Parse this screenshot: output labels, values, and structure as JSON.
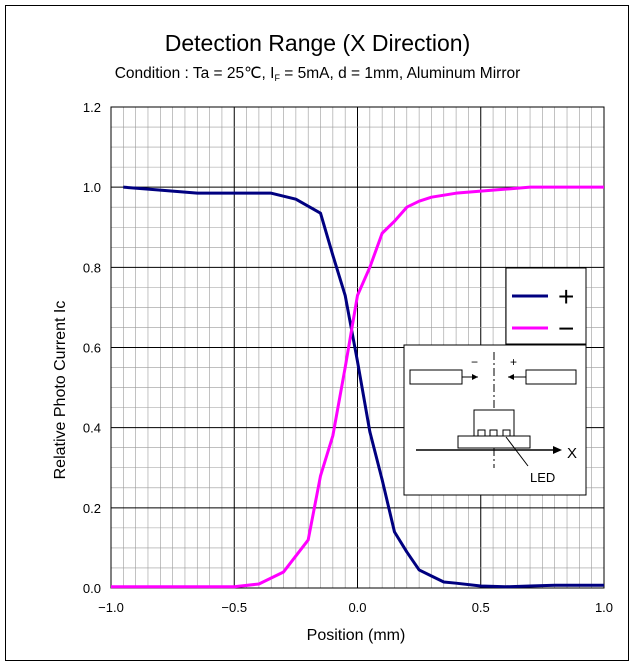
{
  "chart_data": {
    "type": "line",
    "title": "Detection Range (X Direction)",
    "subtitle": {
      "prefix": "Condition : Ta = 25℃, I",
      "sub": "F",
      "suffix": " = 5mA, d = 1mm, Aluminum Mirror"
    },
    "xlabel": "Position (mm)",
    "ylabel": "Relative Photo Current Ic",
    "xlim": [
      -1.0,
      1.0
    ],
    "ylim": [
      0.0,
      1.2
    ],
    "x_ticks": [
      -1.0,
      -0.5,
      0.0,
      0.5,
      1.0
    ],
    "x_tick_labels": [
      "−1.0",
      "−0.5",
      "0.0",
      "0.5",
      "1.0"
    ],
    "y_ticks": [
      0.0,
      0.2,
      0.4,
      0.6,
      0.8,
      1.0,
      1.2
    ],
    "y_tick_labels": [
      "0.0",
      "0.2",
      "0.4",
      "0.6",
      "0.8",
      "1.0",
      "1.2"
    ],
    "grid": true,
    "legend_position": "right",
    "series": [
      {
        "name": "+",
        "color": "#000080",
        "x": [
          -0.95,
          -0.85,
          -0.65,
          -0.5,
          -0.35,
          -0.25,
          -0.15,
          -0.1,
          -0.05,
          0.0,
          0.05,
          0.1,
          0.15,
          0.2,
          0.25,
          0.3,
          0.35,
          0.4,
          0.5,
          0.6,
          0.7,
          0.8,
          0.9,
          1.0
        ],
        "y": [
          1.0,
          0.995,
          0.985,
          0.985,
          0.985,
          0.97,
          0.935,
          0.83,
          0.73,
          0.565,
          0.39,
          0.27,
          0.14,
          0.09,
          0.045,
          0.03,
          0.015,
          0.012,
          0.005,
          0.003,
          0.005,
          0.007,
          0.007,
          0.007
        ]
      },
      {
        "name": "−",
        "color": "#ff00ff",
        "x": [
          -1.0,
          -0.9,
          -0.8,
          -0.7,
          -0.6,
          -0.5,
          -0.4,
          -0.3,
          -0.2,
          -0.15,
          -0.1,
          -0.05,
          0.0,
          0.05,
          0.1,
          0.15,
          0.2,
          0.25,
          0.3,
          0.35,
          0.4,
          0.5,
          0.6,
          0.7,
          0.8,
          0.9,
          1.0
        ],
        "y": [
          0.003,
          0.003,
          0.003,
          0.003,
          0.003,
          0.003,
          0.01,
          0.04,
          0.12,
          0.28,
          0.38,
          0.55,
          0.73,
          0.8,
          0.885,
          0.915,
          0.95,
          0.965,
          0.975,
          0.98,
          0.985,
          0.99,
          0.995,
          1.0,
          1.0,
          1.0,
          1.0
        ]
      }
    ],
    "inset": {
      "minus_label": "−",
      "plus_label": "+",
      "axis_label": "X",
      "led_label": "LED"
    }
  }
}
